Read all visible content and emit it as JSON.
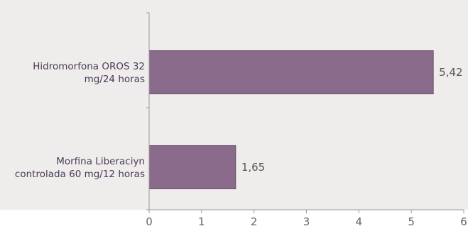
{
  "chart_data": {
    "type": "bar",
    "orientation": "horizontal",
    "title": "",
    "xlabel": "",
    "ylabel": "",
    "categories": [
      [
        "Hidromorfona OROS 32",
        "mg/24 horas"
      ],
      [
        "Morfina Liberaciyn",
        "controlada 60 mg/12 horas"
      ]
    ],
    "values": [
      5.42,
      1.65
    ],
    "value_labels": [
      "5,42",
      "1,65"
    ],
    "xlim": [
      0,
      6
    ],
    "x_ticks": [
      0,
      1,
      2,
      3,
      4,
      5,
      6
    ],
    "x_tick_labels": [
      "0",
      "1",
      "2",
      "3",
      "4",
      "5",
      "6"
    ],
    "grid": false,
    "legend": "none",
    "colors": {
      "bar": "#8a6b8c",
      "bar_stroke": "#6b4f6e",
      "plot_background": "#efedeb",
      "axis": "#999999"
    }
  }
}
